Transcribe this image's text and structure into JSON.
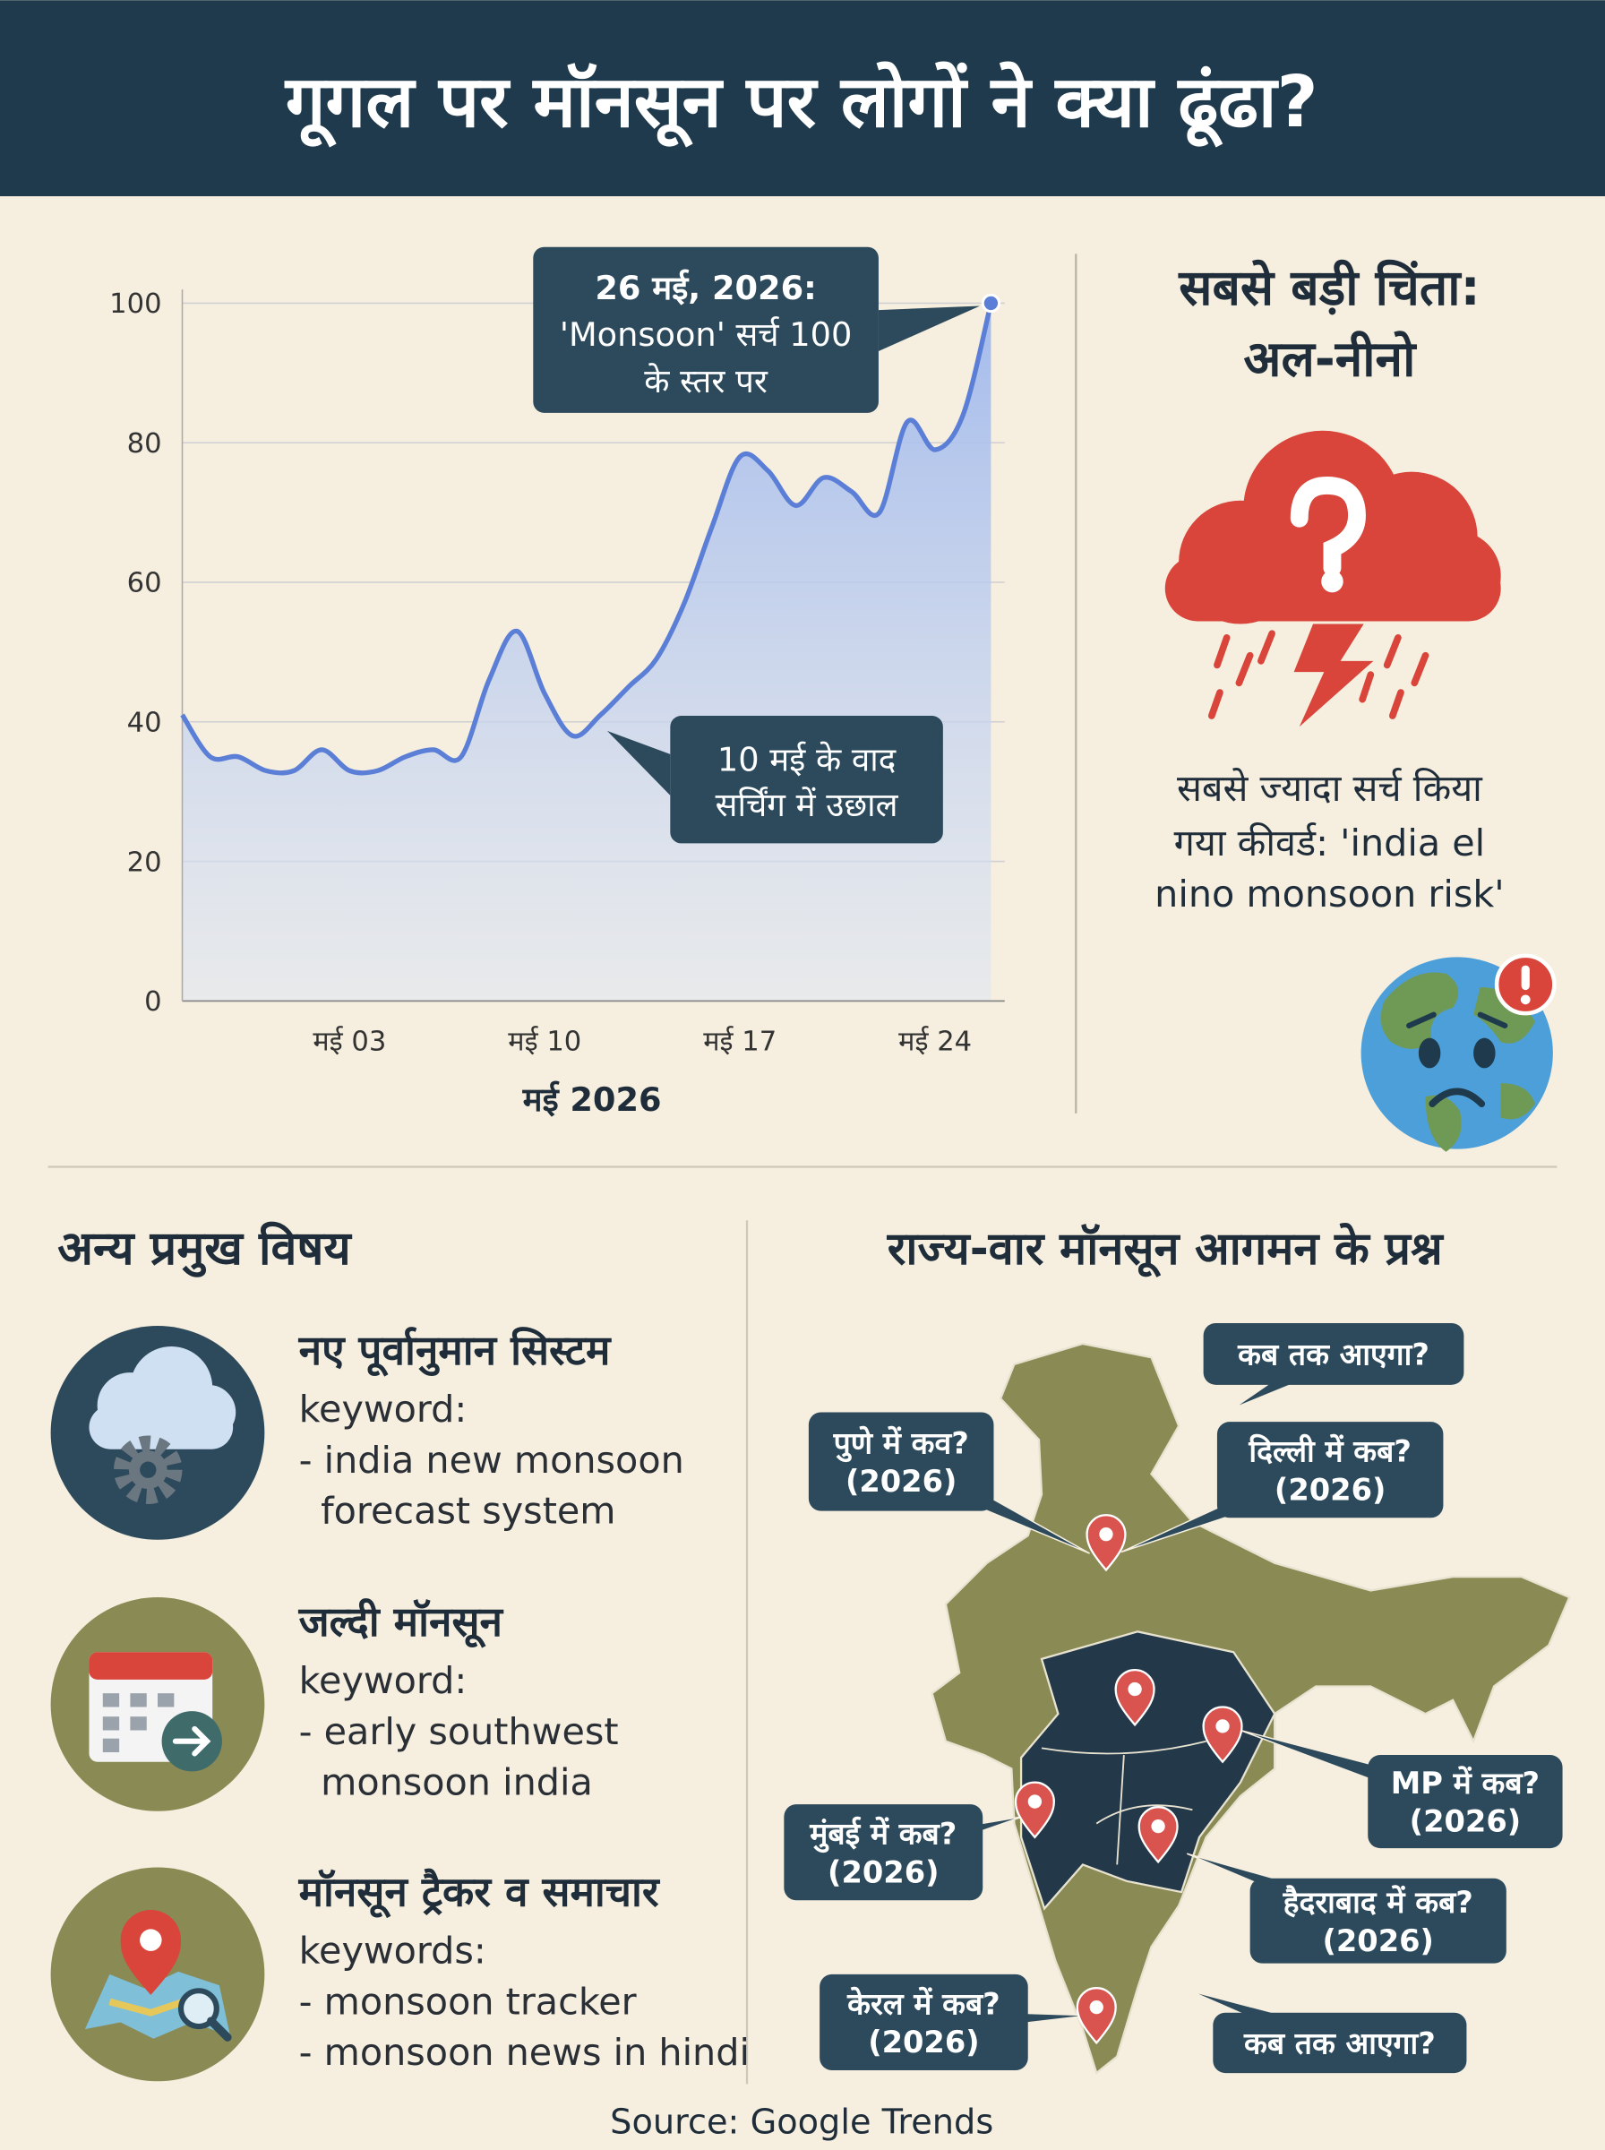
{
  "header": {
    "title": "गूगल पर मॉनसून पर लोगों ने क्या ढूंढा?"
  },
  "chart_data": {
    "type": "line",
    "categories": [
      null,
      null,
      null,
      null,
      null,
      null,
      "मई 03",
      null,
      null,
      null,
      null,
      null,
      null,
      "मई 10",
      null,
      null,
      null,
      null,
      null,
      null,
      "मई 17",
      null,
      null,
      null,
      null,
      null,
      null,
      "मई 24",
      null,
      null
    ],
    "values": [
      41,
      35,
      35,
      33,
      33,
      36,
      33,
      33,
      35,
      36,
      35,
      46,
      53,
      44,
      38,
      41,
      45,
      49,
      57,
      68,
      78,
      76,
      71,
      75,
      73,
      70,
      83,
      79,
      84,
      100
    ],
    "color": "#5b7fd6",
    "xlabel": "मई 2026",
    "ylim": [
      0,
      100
    ],
    "yticks": [
      0,
      20,
      40,
      60,
      80,
      100
    ],
    "grid": true,
    "annotations": [
      {
        "lines": [
          "26 मई, 2026:",
          "'Monsoon' सर्च 100",
          "के स्तर पर"
        ]
      },
      {
        "lines": [
          "10 मई के वाद",
          "सर्चिंग में उछाल"
        ]
      }
    ]
  },
  "concern": {
    "title_lines": [
      "सबसे बड़ी चिंता:",
      "अल-नीनो"
    ],
    "text_lines": [
      "सबसे ज्यादा सर्च किया",
      "गया कीवर्ड: 'india el",
      "nino monsoon risk'"
    ]
  },
  "topics": {
    "title": "अन्य प्रमुख विषय",
    "items": [
      {
        "title": "नए पूर्वानुमान सिस्टम",
        "lines": [
          "keyword:",
          "- india new monsoon",
          "forecast system"
        ]
      },
      {
        "title": "जल्दी मॉनसून",
        "lines": [
          "keyword:",
          "- early southwest",
          "monsoon india"
        ]
      },
      {
        "title": "मॉनसून ट्रैकर व समाचार",
        "lines": [
          "keywords:",
          "- monsoon tracker",
          "- monsoon news in hindi"
        ]
      }
    ]
  },
  "states": {
    "title": "राज्य-वार मॉनसून आगमन के प्रश्न",
    "callouts": [
      {
        "lines": [
          "कब तक आएगा?"
        ]
      },
      {
        "lines": [
          "पुणे में कव?",
          "(2026)"
        ]
      },
      {
        "lines": [
          "दिल्ली में कब?",
          "(2026)"
        ]
      },
      {
        "lines": [
          "MP में कब?",
          "(2026)"
        ]
      },
      {
        "lines": [
          "मुंबई में कब?",
          "(2026)"
        ]
      },
      {
        "lines": [
          "हैदराबाद में कब?",
          "(2026)"
        ]
      },
      {
        "lines": [
          "केरल में कब?",
          "(2026)"
        ]
      },
      {
        "lines": [
          "कब तक आएगा?"
        ]
      }
    ]
  },
  "source": "Source: Google Trends"
}
